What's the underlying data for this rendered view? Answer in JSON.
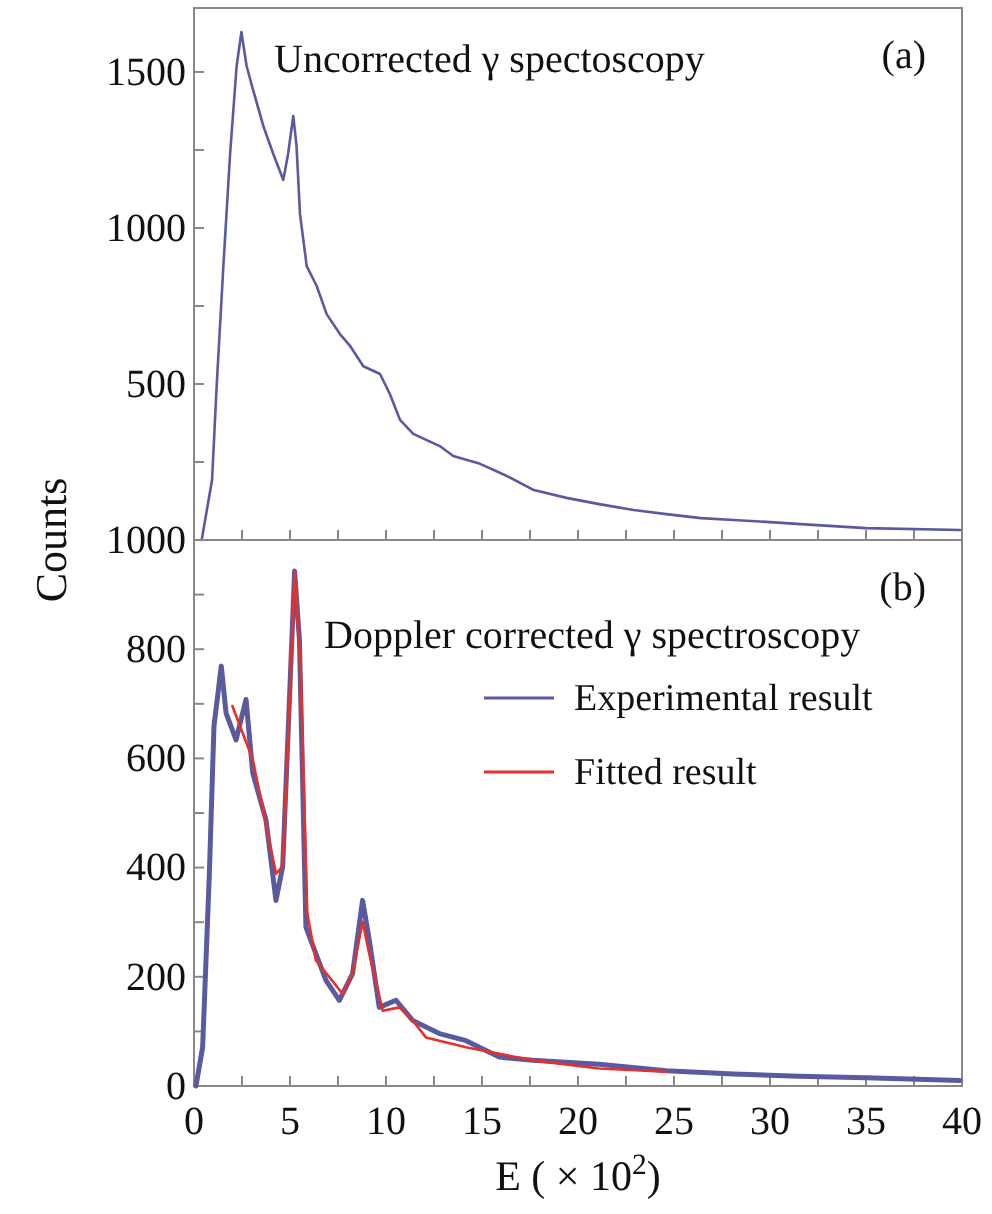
{
  "chart_data": [
    {
      "type": "line",
      "title": "Uncorrected γ spectoscopy",
      "annotations": [
        "(a)"
      ],
      "xlim": [
        0,
        40
      ],
      "xticks": [
        0,
        {
          "value": 2.5,
          "label": null
        },
        5,
        {
          "value": 7.5,
          "label": null
        },
        10,
        {
          "value": 12.5,
          "label": null
        },
        15,
        {
          "value": 17.5,
          "label": null
        },
        20,
        {
          "value": 22.5,
          "label": null
        },
        25,
        {
          "value": 27.5,
          "label": null
        },
        30,
        {
          "value": 32.5,
          "label": null
        },
        35,
        {
          "value": 37.5,
          "label": null
        },
        40
      ],
      "ylim": [
        0,
        1705
      ],
      "yticks": [
        {
          "value": 250,
          "label": null
        },
        500,
        {
          "value": 750,
          "label": null
        },
        1000,
        {
          "value": 1250,
          "label": null
        },
        1500
      ],
      "tick_labels": "y",
      "grid": false,
      "legend": false,
      "series": [
        {
          "color": "#5a5aa0",
          "x": [
            0.4,
            0.94,
            1.18,
            1.53,
            1.88,
            2.22,
            2.47,
            2.74,
            3.02,
            3.61,
            4.13,
            4.65,
            4.9,
            5.17,
            5.34,
            5.52,
            5.87,
            6.39,
            6.91,
            7.6,
            8.13,
            8.82,
            9.69,
            10.2,
            10.73,
            11.42,
            12.8,
            13.5,
            14.9,
            16.3,
            17.7,
            19.4,
            21.1,
            22.9,
            24.6,
            26.4,
            28.1,
            29.8,
            31.6,
            35,
            39.9
          ],
          "values": [
            0,
            192,
            493,
            878,
            1237,
            1519,
            1628,
            1519,
            1455,
            1327,
            1237,
            1154,
            1237,
            1359,
            1263,
            1045,
            878,
            814,
            724,
            660,
            622,
            557,
            532,
            468,
            385,
            340,
            301,
            269,
            244,
            205,
            160,
            135,
            115,
            96,
            83,
            70,
            64,
            58,
            51,
            38,
            32
          ]
        }
      ]
    },
    {
      "type": "line",
      "title": "Doppler corrected γ spectroscopy",
      "xlabel": "E ( × 10$^{2}$)",
      "ylabel": "Counts",
      "annotations": [
        "(b)"
      ],
      "xlim": [
        0,
        40
      ],
      "xticks": [
        0,
        {
          "value": 2.5,
          "label": null
        },
        5,
        {
          "value": 7.5,
          "label": null
        },
        10,
        {
          "value": 12.5,
          "label": null
        },
        15,
        {
          "value": 17.5,
          "label": null
        },
        20,
        {
          "value": 22.5,
          "label": null
        },
        25,
        {
          "value": 27.5,
          "label": null
        },
        30,
        {
          "value": 32.5,
          "label": null
        },
        35,
        {
          "value": 37.5,
          "label": null
        },
        40
      ],
      "ylim": [
        0,
        1000
      ],
      "yticks": [
        0,
        {
          "value": 100,
          "label": null
        },
        200,
        {
          "value": 300,
          "label": null
        },
        400,
        {
          "value": 500,
          "label": null
        },
        600,
        {
          "value": 700,
          "label": null
        },
        800,
        {
          "value": 900,
          "label": null
        },
        1000
      ],
      "grid": false,
      "legend": "top right",
      "series": [
        {
          "name": "Experimental result",
          "color": "#5a5aa0",
          "x": [
            0.1,
            0.45,
            0.8,
            1.04,
            1.42,
            1.67,
            2.19,
            2.71,
            3.06,
            3.75,
            4.27,
            4.62,
            5.24,
            5.49,
            5.83,
            6.35,
            6.88,
            7.57,
            8.26,
            8.78,
            9.13,
            9.65,
            10.52,
            11.39,
            12.78,
            14.17,
            15.9,
            17.64,
            21.1,
            24.6,
            28.1,
            31.5,
            35,
            39.9
          ],
          "values": [
            0,
            71,
            389,
            659,
            769,
            683,
            634,
            708,
            573,
            487,
            340,
            402,
            943,
            818,
            291,
            242,
            193,
            157,
            206,
            340,
            267,
            144,
            157,
            120,
            96,
            83,
            53,
            47,
            40,
            28,
            22,
            18,
            15,
            10
          ]
        },
        {
          "name": "Fitted result",
          "color": "#e8302a",
          "x": [
            2.0,
            3.06,
            4.27,
            4.62,
            4.97,
            5.24,
            5.56,
            5.9,
            6.35,
            7.74,
            8.26,
            8.78,
            9.13,
            9.83,
            10.69,
            11.39,
            12.08,
            14.17,
            17.64,
            21.1,
            24.6
          ],
          "values": [
            696,
            598,
            389,
            402,
            696,
            943,
            757,
            316,
            230,
            169,
            206,
            301,
            242,
            138,
            144,
            120,
            89,
            71,
            47,
            32,
            26
          ]
        }
      ]
    }
  ]
}
